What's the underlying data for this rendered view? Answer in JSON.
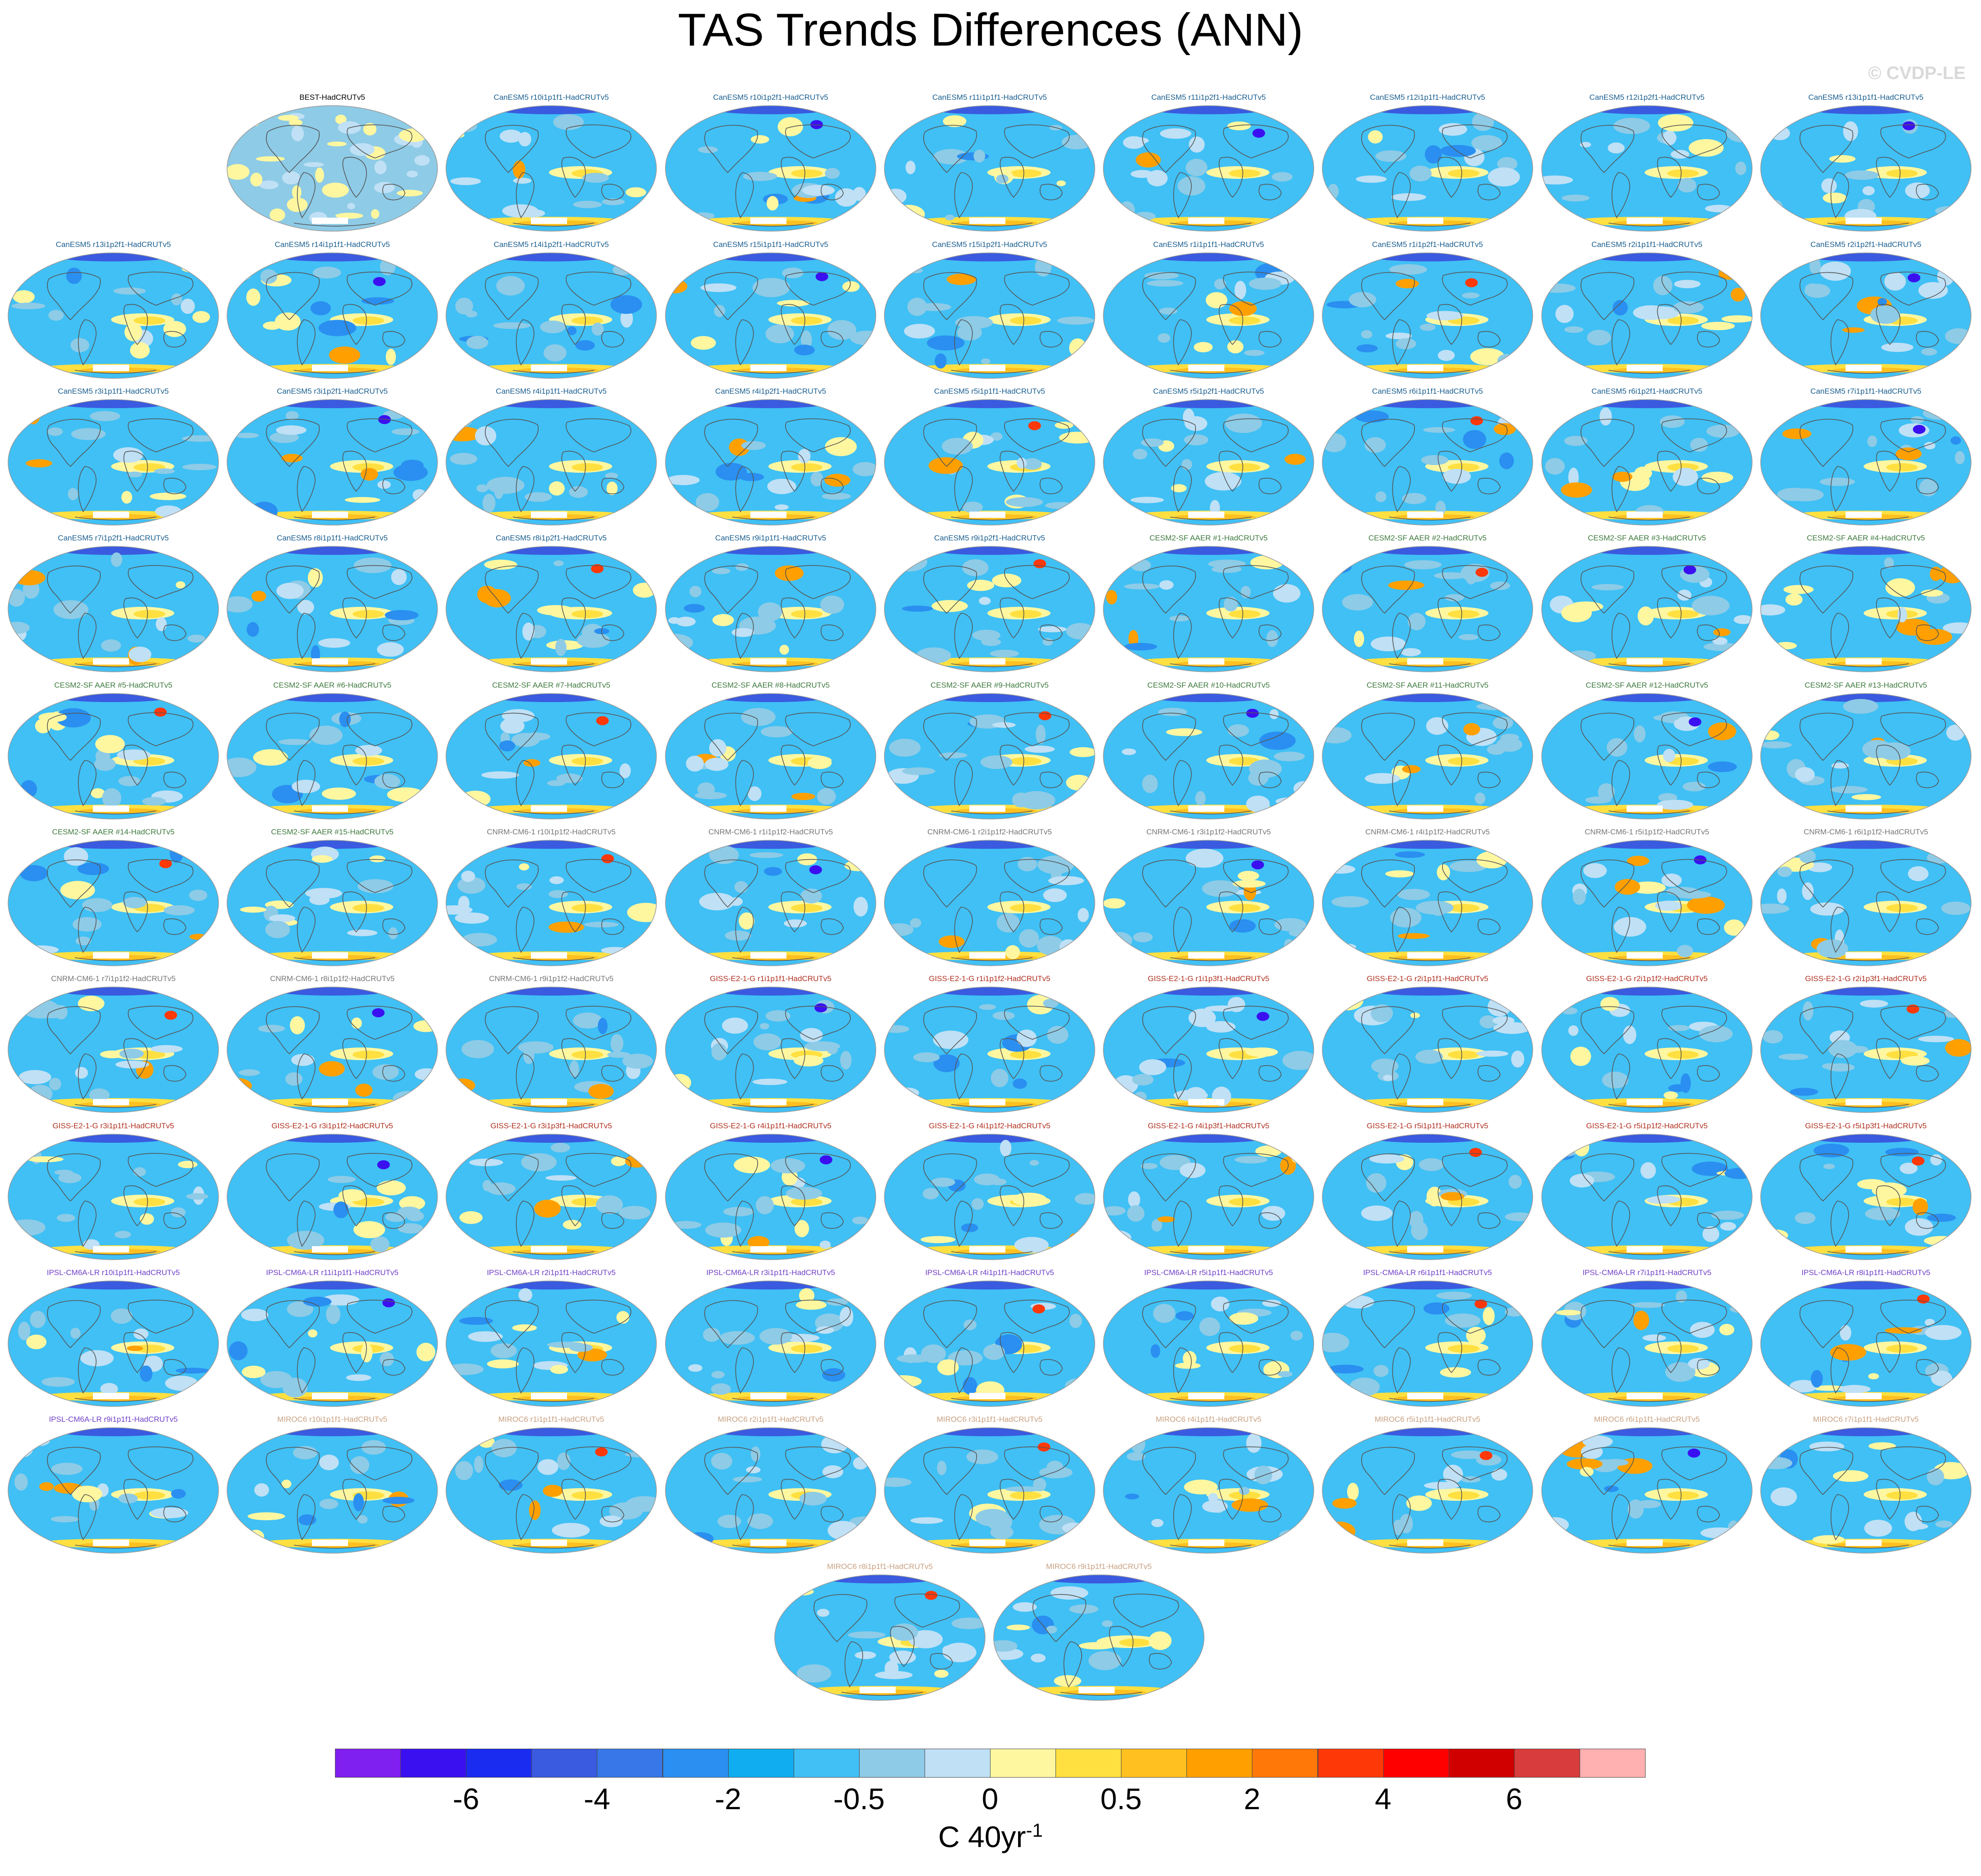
{
  "title": "TAS Trends Differences (ANN)",
  "watermark": "© CVDP-LE",
  "colors": {
    "family": {
      "BEST": "#000000",
      "CanESM5": "#1a5e8f",
      "CESM2-SF": "#3e7a3e",
      "CNRM-CM6-1": "#777777",
      "GISS-E2-1-G": "#b03020",
      "IPSL-CM6A-LR": "#7040c8",
      "MIROC6": "#c8a080"
    },
    "colorbar": [
      "#7f1ff0",
      "#3a10f0",
      "#1a2cf0",
      "#3a5ae0",
      "#3877e8",
      "#2a8ff0",
      "#10aef0",
      "#40c0f5",
      "#8ecbe6",
      "#bfe0f5",
      "#fff7a0",
      "#ffe040",
      "#ffc020",
      "#ffa000",
      "#ff7808",
      "#ff3808",
      "#ff0000",
      "#d00000",
      "#d83c3c",
      "#ffb0b0"
    ]
  },
  "colorbar_ticks": [
    "-6",
    "-4",
    "-2",
    "-0.5",
    "0",
    "0.5",
    "2",
    "4",
    "6"
  ],
  "units": {
    "base": "C 40yr",
    "exp": "-1"
  },
  "panels": [
    {
      "label": "BEST-HadCRUTv5",
      "family": "BEST"
    },
    {
      "label": "CanESM5 r10i1p1f1-HadCRUTv5",
      "family": "CanESM5"
    },
    {
      "label": "CanESM5 r10i1p2f1-HadCRUTv5",
      "family": "CanESM5"
    },
    {
      "label": "CanESM5 r11i1p1f1-HadCRUTv5",
      "family": "CanESM5"
    },
    {
      "label": "CanESM5 r11i1p2f1-HadCRUTv5",
      "family": "CanESM5"
    },
    {
      "label": "CanESM5 r12i1p1f1-HadCRUTv5",
      "family": "CanESM5"
    },
    {
      "label": "CanESM5 r12i1p2f1-HadCRUTv5",
      "family": "CanESM5"
    },
    {
      "label": "CanESM5 r13i1p1f1-HadCRUTv5",
      "family": "CanESM5"
    },
    {
      "label": "CanESM5 r13i1p2f1-HadCRUTv5",
      "family": "CanESM5"
    },
    {
      "label": "CanESM5 r14i1p1f1-HadCRUTv5",
      "family": "CanESM5"
    },
    {
      "label": "CanESM5 r14i1p2f1-HadCRUTv5",
      "family": "CanESM5"
    },
    {
      "label": "CanESM5 r15i1p1f1-HadCRUTv5",
      "family": "CanESM5"
    },
    {
      "label": "CanESM5 r15i1p2f1-HadCRUTv5",
      "family": "CanESM5"
    },
    {
      "label": "CanESM5 r1i1p1f1-HadCRUTv5",
      "family": "CanESM5"
    },
    {
      "label": "CanESM5 r1i1p2f1-HadCRUTv5",
      "family": "CanESM5"
    },
    {
      "label": "CanESM5 r2i1p1f1-HadCRUTv5",
      "family": "CanESM5"
    },
    {
      "label": "CanESM5 r2i1p2f1-HadCRUTv5",
      "family": "CanESM5"
    },
    {
      "label": "CanESM5 r3i1p1f1-HadCRUTv5",
      "family": "CanESM5"
    },
    {
      "label": "CanESM5 r3i1p2f1-HadCRUTv5",
      "family": "CanESM5"
    },
    {
      "label": "CanESM5 r4i1p1f1-HadCRUTv5",
      "family": "CanESM5"
    },
    {
      "label": "CanESM5 r4i1p2f1-HadCRUTv5",
      "family": "CanESM5"
    },
    {
      "label": "CanESM5 r5i1p1f1-HadCRUTv5",
      "family": "CanESM5"
    },
    {
      "label": "CanESM5 r5i1p2f1-HadCRUTv5",
      "family": "CanESM5"
    },
    {
      "label": "CanESM5 r6i1p1f1-HadCRUTv5",
      "family": "CanESM5"
    },
    {
      "label": "CanESM5 r6i1p2f1-HadCRUTv5",
      "family": "CanESM5"
    },
    {
      "label": "CanESM5 r7i1p1f1-HadCRUTv5",
      "family": "CanESM5"
    },
    {
      "label": "CanESM5 r7i1p2f1-HadCRUTv5",
      "family": "CanESM5"
    },
    {
      "label": "CanESM5 r8i1p1f1-HadCRUTv5",
      "family": "CanESM5"
    },
    {
      "label": "CanESM5 r8i1p2f1-HadCRUTv5",
      "family": "CanESM5"
    },
    {
      "label": "CanESM5 r9i1p1f1-HadCRUTv5",
      "family": "CanESM5"
    },
    {
      "label": "CanESM5 r9i1p2f1-HadCRUTv5",
      "family": "CanESM5"
    },
    {
      "label": "CESM2-SF AAER #1-HadCRUTv5",
      "family": "CESM2-SF"
    },
    {
      "label": "CESM2-SF AAER #2-HadCRUTv5",
      "family": "CESM2-SF"
    },
    {
      "label": "CESM2-SF AAER #3-HadCRUTv5",
      "family": "CESM2-SF"
    },
    {
      "label": "CESM2-SF AAER #4-HadCRUTv5",
      "family": "CESM2-SF"
    },
    {
      "label": "CESM2-SF AAER #5-HadCRUTv5",
      "family": "CESM2-SF"
    },
    {
      "label": "CESM2-SF AAER #6-HadCRUTv5",
      "family": "CESM2-SF"
    },
    {
      "label": "CESM2-SF AAER #7-HadCRUTv5",
      "family": "CESM2-SF"
    },
    {
      "label": "CESM2-SF AAER #8-HadCRUTv5",
      "family": "CESM2-SF"
    },
    {
      "label": "CESM2-SF AAER #9-HadCRUTv5",
      "family": "CESM2-SF"
    },
    {
      "label": "CESM2-SF AAER #10-HadCRUTv5",
      "family": "CESM2-SF"
    },
    {
      "label": "CESM2-SF AAER #11-HadCRUTv5",
      "family": "CESM2-SF"
    },
    {
      "label": "CESM2-SF AAER #12-HadCRUTv5",
      "family": "CESM2-SF"
    },
    {
      "label": "CESM2-SF AAER #13-HadCRUTv5",
      "family": "CESM2-SF"
    },
    {
      "label": "CESM2-SF AAER #14-HadCRUTv5",
      "family": "CESM2-SF"
    },
    {
      "label": "CESM2-SF AAER #15-HadCRUTv5",
      "family": "CESM2-SF"
    },
    {
      "label": "CNRM-CM6-1 r10i1p1f2-HadCRUTv5",
      "family": "CNRM-CM6-1"
    },
    {
      "label": "CNRM-CM6-1 r1i1p1f2-HadCRUTv5",
      "family": "CNRM-CM6-1"
    },
    {
      "label": "CNRM-CM6-1 r2i1p1f2-HadCRUTv5",
      "family": "CNRM-CM6-1"
    },
    {
      "label": "CNRM-CM6-1 r3i1p1f2-HadCRUTv5",
      "family": "CNRM-CM6-1"
    },
    {
      "label": "CNRM-CM6-1 r4i1p1f2-HadCRUTv5",
      "family": "CNRM-CM6-1"
    },
    {
      "label": "CNRM-CM6-1 r5i1p1f2-HadCRUTv5",
      "family": "CNRM-CM6-1"
    },
    {
      "label": "CNRM-CM6-1 r6i1p1f2-HadCRUTv5",
      "family": "CNRM-CM6-1"
    },
    {
      "label": "CNRM-CM6-1 r7i1p1f2-HadCRUTv5",
      "family": "CNRM-CM6-1"
    },
    {
      "label": "CNRM-CM6-1 r8i1p1f2-HadCRUTv5",
      "family": "CNRM-CM6-1"
    },
    {
      "label": "CNRM-CM6-1 r9i1p1f2-HadCRUTv5",
      "family": "CNRM-CM6-1"
    },
    {
      "label": "GISS-E2-1-G r1i1p1f1-HadCRUTv5",
      "family": "GISS-E2-1-G"
    },
    {
      "label": "GISS-E2-1-G r1i1p1f2-HadCRUTv5",
      "family": "GISS-E2-1-G"
    },
    {
      "label": "GISS-E2-1-G r1i1p3f1-HadCRUTv5",
      "family": "GISS-E2-1-G"
    },
    {
      "label": "GISS-E2-1-G r2i1p1f1-HadCRUTv5",
      "family": "GISS-E2-1-G"
    },
    {
      "label": "GISS-E2-1-G r2i1p1f2-HadCRUTv5",
      "family": "GISS-E2-1-G"
    },
    {
      "label": "GISS-E2-1-G r2i1p3f1-HadCRUTv5",
      "family": "GISS-E2-1-G"
    },
    {
      "label": "GISS-E2-1-G r3i1p1f1-HadCRUTv5",
      "family": "GISS-E2-1-G"
    },
    {
      "label": "GISS-E2-1-G r3i1p1f2-HadCRUTv5",
      "family": "GISS-E2-1-G"
    },
    {
      "label": "GISS-E2-1-G r3i1p3f1-HadCRUTv5",
      "family": "GISS-E2-1-G"
    },
    {
      "label": "GISS-E2-1-G r4i1p1f1-HadCRUTv5",
      "family": "GISS-E2-1-G"
    },
    {
      "label": "GISS-E2-1-G r4i1p1f2-HadCRUTv5",
      "family": "GISS-E2-1-G"
    },
    {
      "label": "GISS-E2-1-G r4i1p3f1-HadCRUTv5",
      "family": "GISS-E2-1-G"
    },
    {
      "label": "GISS-E2-1-G r5i1p1f1-HadCRUTv5",
      "family": "GISS-E2-1-G"
    },
    {
      "label": "GISS-E2-1-G r5i1p1f2-HadCRUTv5",
      "family": "GISS-E2-1-G"
    },
    {
      "label": "GISS-E2-1-G r5i1p3f1-HadCRUTv5",
      "family": "GISS-E2-1-G"
    },
    {
      "label": "IPSL-CM6A-LR r10i1p1f1-HadCRUTv5",
      "family": "IPSL-CM6A-LR"
    },
    {
      "label": "IPSL-CM6A-LR r11i1p1f1-HadCRUTv5",
      "family": "IPSL-CM6A-LR"
    },
    {
      "label": "IPSL-CM6A-LR r2i1p1f1-HadCRUTv5",
      "family": "IPSL-CM6A-LR"
    },
    {
      "label": "IPSL-CM6A-LR r3i1p1f1-HadCRUTv5",
      "family": "IPSL-CM6A-LR"
    },
    {
      "label": "IPSL-CM6A-LR r4i1p1f1-HadCRUTv5",
      "family": "IPSL-CM6A-LR"
    },
    {
      "label": "IPSL-CM6A-LR r5i1p1f1-HadCRUTv5",
      "family": "IPSL-CM6A-LR"
    },
    {
      "label": "IPSL-CM6A-LR r6i1p1f1-HadCRUTv5",
      "family": "IPSL-CM6A-LR"
    },
    {
      "label": "IPSL-CM6A-LR r7i1p1f1-HadCRUTv5",
      "family": "IPSL-CM6A-LR"
    },
    {
      "label": "IPSL-CM6A-LR r8i1p1f1-HadCRUTv5",
      "family": "IPSL-CM6A-LR"
    },
    {
      "label": "IPSL-CM6A-LR r9i1p1f1-HadCRUTv5",
      "family": "IPSL-CM6A-LR"
    },
    {
      "label": "MIROC6 r10i1p1f1-HadCRUTv5",
      "family": "MIROC6"
    },
    {
      "label": "MIROC6 r1i1p1f1-HadCRUTv5",
      "family": "MIROC6"
    },
    {
      "label": "MIROC6 r2i1p1f1-HadCRUTv5",
      "family": "MIROC6"
    },
    {
      "label": "MIROC6 r3i1p1f1-HadCRUTv5",
      "family": "MIROC6"
    },
    {
      "label": "MIROC6 r4i1p1f1-HadCRUTv5",
      "family": "MIROC6"
    },
    {
      "label": "MIROC6 r5i1p1f1-HadCRUTv5",
      "family": "MIROC6"
    },
    {
      "label": "MIROC6 r6i1p1f1-HadCRUTv5",
      "family": "MIROC6"
    },
    {
      "label": "MIROC6 r7i1p1f1-HadCRUTv5",
      "family": "MIROC6"
    },
    {
      "label": "MIROC6 r8i1p1f1-HadCRUTv5",
      "family": "MIROC6"
    },
    {
      "label": "MIROC6 r9i1p1f1-HadCRUTv5",
      "family": "MIROC6"
    }
  ]
}
